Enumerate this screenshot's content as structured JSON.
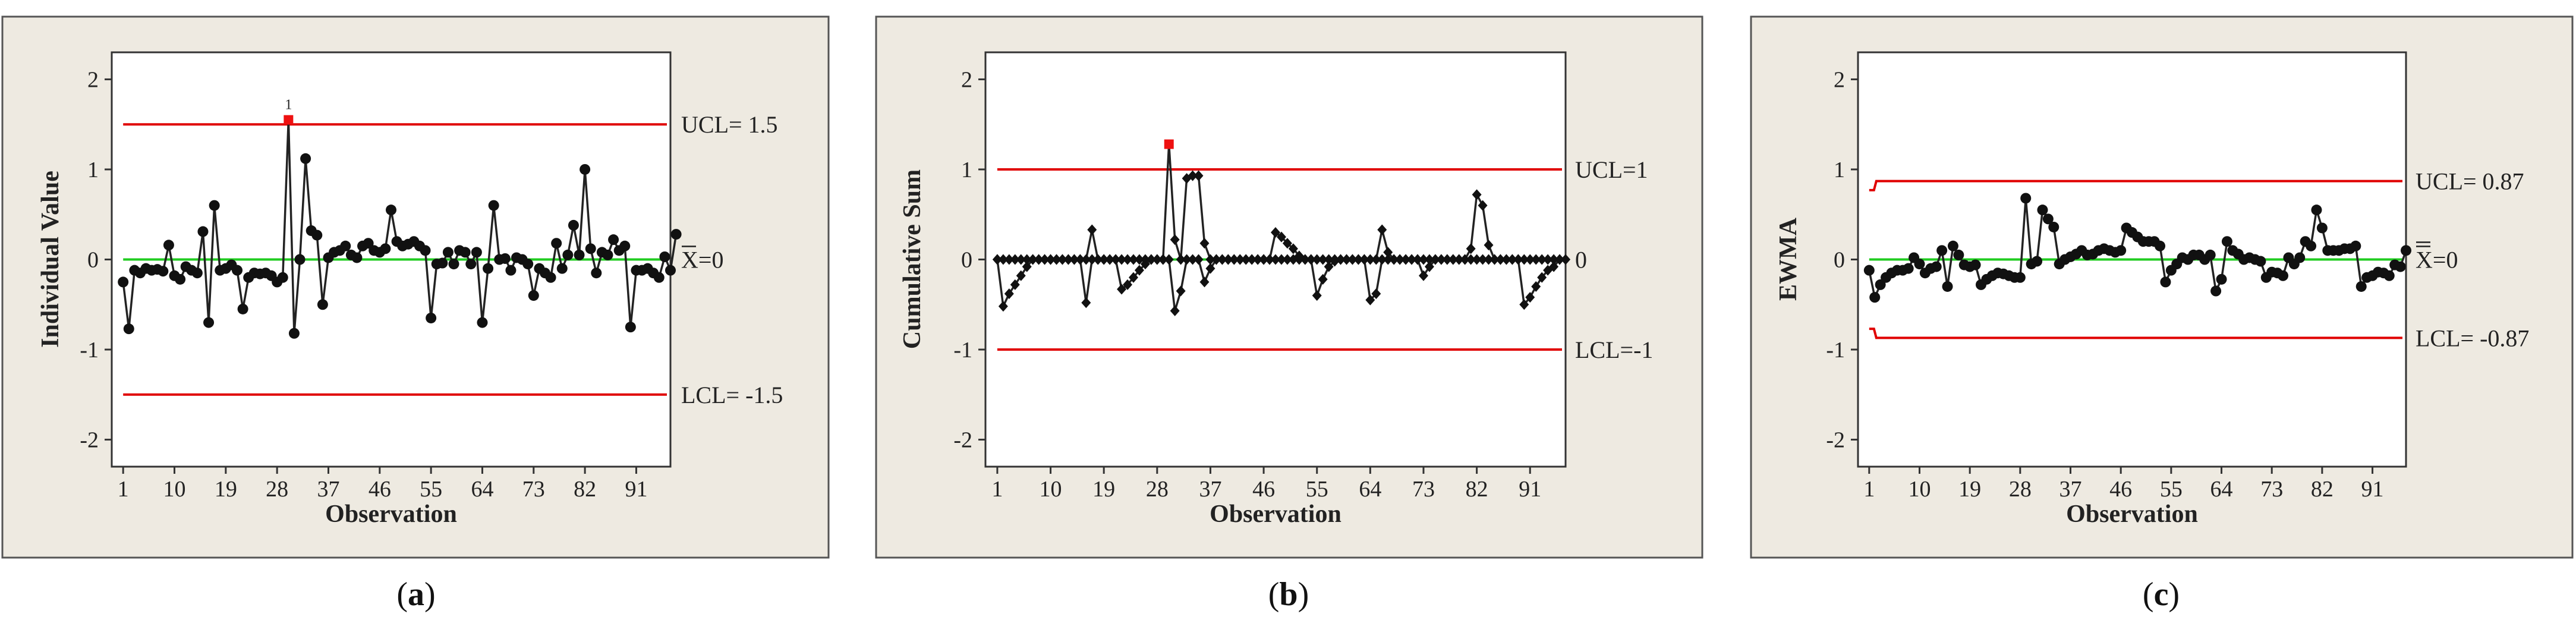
{
  "charts_meta": {
    "obs_ticks": [
      1,
      10,
      19,
      28,
      37,
      46,
      55,
      64,
      73,
      82,
      91
    ],
    "xlabel": "Observation",
    "colors": {
      "limit": "#e00000",
      "center": "#22cc22",
      "points": "#111111",
      "ooc": "#ee1111",
      "panel": "#eeeae1"
    }
  },
  "chart_data": [
    {
      "type": "line",
      "caption_open": "(",
      "caption_letter": "a",
      "caption_close": ")",
      "ylabel": "Individual Value",
      "xlabel": "Observation",
      "ylim": [
        -2.3,
        2.3
      ],
      "yticks": [
        "2",
        "1",
        "0",
        "-1",
        "-2"
      ],
      "ucl": {
        "value": 1.5,
        "label": "UCL= 1.5"
      },
      "center": {
        "value": 0,
        "label": "X=0"
      },
      "lcl": {
        "value": -1.5,
        "label": "LCL= -1.5"
      },
      "annotation": {
        "text": "1",
        "index": 29
      },
      "marker": "circle",
      "ooc_indices": [
        29
      ],
      "values": [
        -0.25,
        -0.77,
        -0.12,
        -0.15,
        -0.1,
        -0.12,
        -0.11,
        -0.13,
        0.16,
        -0.18,
        -0.22,
        -0.08,
        -0.12,
        -0.15,
        0.31,
        -0.7,
        0.6,
        -0.12,
        -0.1,
        -0.06,
        -0.12,
        -0.55,
        -0.2,
        -0.15,
        -0.16,
        -0.15,
        -0.18,
        -0.25,
        -0.2,
        1.55,
        -0.82,
        0.0,
        1.12,
        0.32,
        0.27,
        -0.5,
        0.02,
        0.08,
        0.1,
        0.15,
        0.05,
        0.02,
        0.15,
        0.18,
        0.1,
        0.08,
        0.12,
        0.55,
        0.2,
        0.15,
        0.17,
        0.2,
        0.15,
        0.1,
        -0.65,
        -0.05,
        -0.04,
        0.08,
        -0.05,
        0.1,
        0.08,
        -0.05,
        0.08,
        -0.7,
        -0.1,
        0.6,
        0.0,
        0.01,
        -0.12,
        0.02,
        0.0,
        -0.05,
        -0.4,
        -0.1,
        -0.15,
        -0.2,
        0.18,
        -0.1,
        0.05,
        0.38,
        0.05,
        1.0,
        0.12,
        -0.15,
        0.08,
        0.05,
        0.22,
        0.1,
        0.15,
        -0.75,
        -0.12,
        -0.12,
        -0.1,
        -0.15,
        -0.2,
        0.03,
        -0.12,
        0.28
      ]
    },
    {
      "type": "line",
      "caption_open": "(",
      "caption_letter": "b",
      "caption_close": ")",
      "ylabel": "Cumulative Sum",
      "xlabel": "Observation",
      "ylim": [
        -2.3,
        2.3
      ],
      "yticks": [
        "2",
        "1",
        "0",
        "-1",
        "-2"
      ],
      "ucl": {
        "value": 1,
        "label": "UCL=1"
      },
      "center": {
        "value": 0,
        "label": "0"
      },
      "lcl": {
        "value": -1,
        "label": "LCL=-1"
      },
      "marker": "diamond",
      "ooc_indices": [
        29
      ],
      "upper": [
        0,
        0,
        0,
        0,
        0,
        0,
        0,
        0,
        0,
        0,
        0,
        0,
        0,
        0,
        0,
        0,
        0.33,
        0,
        0,
        0,
        0,
        0,
        0,
        0,
        0,
        0,
        0,
        0,
        0,
        1.28,
        0.22,
        0,
        0.9,
        0.93,
        0.93,
        0.18,
        0,
        0,
        0,
        0,
        0,
        0,
        0,
        0,
        0,
        0,
        0,
        0.3,
        0.25,
        0.18,
        0.12,
        0.04,
        0,
        0,
        0,
        0,
        0,
        0,
        0,
        0,
        0,
        0,
        0,
        0,
        0,
        0.33,
        0.08,
        0,
        0,
        0,
        0,
        0,
        0,
        0,
        0,
        0,
        0,
        0,
        0,
        0,
        0.12,
        0.72,
        0.6,
        0.16,
        0,
        0,
        0,
        0,
        0,
        0,
        0,
        0,
        0,
        0,
        0,
        0,
        0
      ],
      "lower": [
        0,
        -0.52,
        -0.38,
        -0.28,
        -0.18,
        -0.08,
        0,
        0,
        0,
        0,
        0,
        0,
        0,
        0,
        0,
        -0.48,
        0,
        0,
        0,
        0,
        0,
        -0.33,
        -0.28,
        -0.2,
        -0.12,
        -0.05,
        0,
        0,
        0,
        0,
        -0.57,
        -0.35,
        0,
        0,
        0,
        -0.25,
        -0.1,
        0,
        0,
        0,
        0,
        0,
        0,
        0,
        0,
        0,
        0,
        0,
        0,
        0,
        0,
        0,
        0,
        0,
        -0.4,
        -0.22,
        -0.08,
        -0.02,
        0,
        0,
        0,
        0,
        0,
        -0.45,
        -0.38,
        0,
        0,
        0,
        0,
        0,
        0,
        0,
        -0.18,
        -0.08,
        0,
        0,
        0,
        0,
        0,
        0,
        0,
        0,
        0,
        0,
        0,
        0,
        0,
        0,
        0,
        -0.5,
        -0.42,
        -0.3,
        -0.2,
        -0.12,
        -0.08,
        0,
        0
      ]
    },
    {
      "type": "line",
      "caption_open": "(",
      "caption_letter": "c",
      "caption_close": ")",
      "ylabel": "EWMA",
      "xlabel": "Observation",
      "ylim": [
        -2.3,
        2.3
      ],
      "yticks": [
        "2",
        "1",
        "0",
        "-1",
        "-2"
      ],
      "ucl": {
        "value": 0.87,
        "label": "UCL= 0.87"
      },
      "center": {
        "value": 0,
        "label": "X=0"
      },
      "lcl": {
        "value": -0.87,
        "label": "LCL= -0.87"
      },
      "limit_start": {
        "ucl": 0.77,
        "lcl": -0.77
      },
      "marker": "circle",
      "ooc_indices": [],
      "values": [
        -0.12,
        -0.42,
        -0.28,
        -0.2,
        -0.15,
        -0.12,
        -0.12,
        -0.1,
        0.02,
        -0.05,
        -0.15,
        -0.1,
        -0.08,
        0.1,
        -0.3,
        0.15,
        0.05,
        -0.06,
        -0.08,
        -0.06,
        -0.28,
        -0.22,
        -0.18,
        -0.15,
        -0.16,
        -0.18,
        -0.2,
        -0.2,
        0.68,
        -0.05,
        -0.02,
        0.55,
        0.45,
        0.36,
        -0.05,
        0.0,
        0.03,
        0.06,
        0.1,
        0.05,
        0.06,
        0.1,
        0.12,
        0.1,
        0.08,
        0.1,
        0.35,
        0.3,
        0.25,
        0.2,
        0.2,
        0.2,
        0.15,
        -0.25,
        -0.12,
        -0.05,
        0.02,
        0.0,
        0.05,
        0.05,
        0.0,
        0.05,
        -0.35,
        -0.22,
        0.2,
        0.1,
        0.06,
        0.0,
        0.02,
        0.0,
        -0.02,
        -0.2,
        -0.14,
        -0.15,
        -0.18,
        0.02,
        -0.05,
        0.02,
        0.2,
        0.15,
        0.55,
        0.35,
        0.1,
        0.1,
        0.1,
        0.12,
        0.12,
        0.15,
        -0.3,
        -0.2,
        -0.18,
        -0.14,
        -0.15,
        -0.18,
        -0.06,
        -0.08,
        0.1
      ]
    }
  ]
}
